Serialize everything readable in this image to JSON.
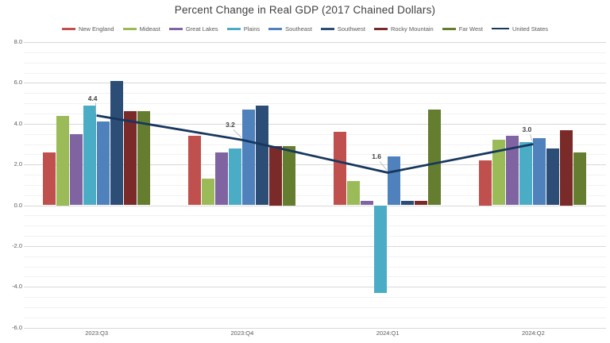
{
  "title": "Percent Change in Real GDP (2017 Chained Dollars)",
  "chart_data": {
    "type": "bar",
    "title": "Percent Change in Real GDP (2017 Chained Dollars)",
    "categories": [
      "2023:Q3",
      "2023:Q4",
      "2024:Q1",
      "2024:Q2"
    ],
    "series": [
      {
        "name": "New England",
        "color": "#C0504D",
        "values": [
          2.6,
          3.4,
          3.6,
          2.2
        ]
      },
      {
        "name": "Mideast",
        "color": "#9BBB59",
        "values": [
          4.4,
          1.3,
          1.2,
          3.2
        ]
      },
      {
        "name": "Great Lakes",
        "color": "#8064A2",
        "values": [
          3.5,
          2.6,
          0.2,
          3.4
        ]
      },
      {
        "name": "Plains",
        "color": "#4BACC6",
        "values": [
          4.9,
          2.8,
          -4.3,
          3.1
        ]
      },
      {
        "name": "Southeast",
        "color": "#4F81BD",
        "values": [
          4.1,
          4.7,
          2.4,
          3.3
        ]
      },
      {
        "name": "Southwest",
        "color": "#2C4D75",
        "values": [
          6.1,
          4.9,
          0.2,
          2.8
        ]
      },
      {
        "name": "Rocky Mountain",
        "color": "#7A2A29",
        "values": [
          4.6,
          2.9,
          0.2,
          3.7
        ]
      },
      {
        "name": "Far West",
        "color": "#657D2F",
        "values": [
          4.6,
          2.9,
          4.7,
          2.6
        ]
      }
    ],
    "line_series": {
      "name": "United States",
      "color": "#17375E",
      "values": [
        4.4,
        3.2,
        1.6,
        3.0
      ],
      "data_labels": [
        "4.4",
        "3.2",
        "1.6",
        "3.0"
      ]
    },
    "y_ticks": [
      "8.0",
      "6.0",
      "4.0",
      "2.0",
      "0.0",
      "-2.0",
      "-4.0",
      "-6.0"
    ],
    "ylim": [
      -6,
      8
    ],
    "ytick_step": 2,
    "grid": "major+minor",
    "legend_position": "top",
    "xlabel": "",
    "ylabel": ""
  }
}
